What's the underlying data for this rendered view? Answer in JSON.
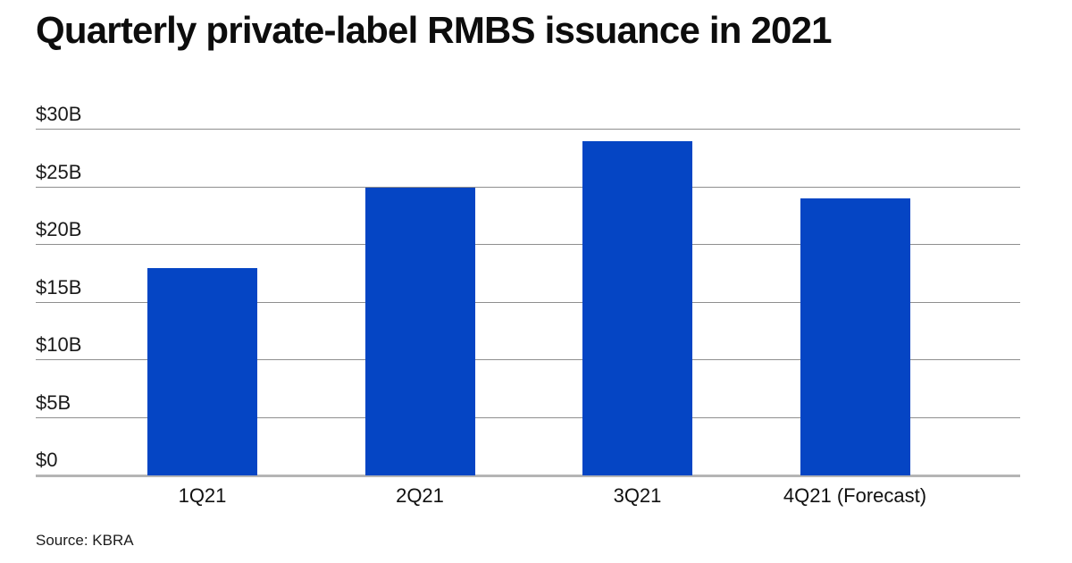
{
  "title": "Quarterly private-label RMBS issuance in 2021",
  "source": "Source: KBRA",
  "colors": {
    "bar": "#0545c4",
    "gridline": "#8f8f8f",
    "baseline": "#b5b5b5",
    "title_text": "#0d0d0d",
    "tick_text": "#1a1a1a"
  },
  "chart_data": {
    "type": "bar",
    "title": "Quarterly private-label RMBS issuance in 2021",
    "categories": [
      "1Q21",
      "2Q21",
      "3Q21",
      "4Q21 (Forecast)"
    ],
    "values": [
      18,
      25,
      29,
      24
    ],
    "xlabel": "",
    "ylabel": "",
    "ylim": [
      0,
      30
    ],
    "yticks": [
      0,
      5,
      10,
      15,
      20,
      25,
      30
    ],
    "ytick_labels": [
      "$0",
      "$5B",
      "$10B",
      "$15B",
      "$20B",
      "$25B",
      "$30B"
    ],
    "grid": true,
    "legend": "none",
    "source": "Source: KBRA"
  }
}
